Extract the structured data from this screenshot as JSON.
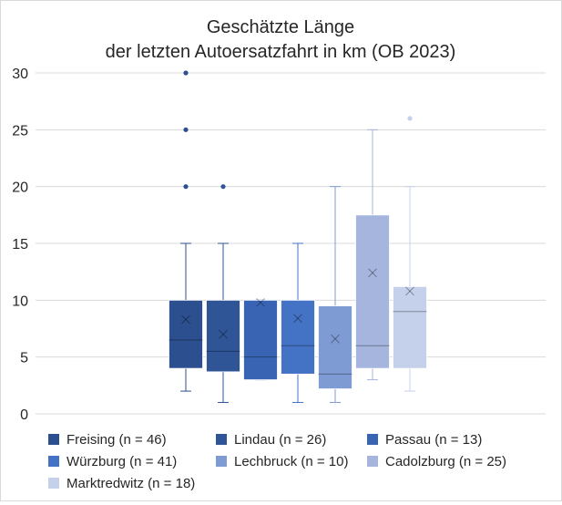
{
  "chart_data": {
    "type": "box",
    "title_lines": [
      "Geschätzte Länge",
      "der letzten Autoersatzfahrt in km (OB 2023)"
    ],
    "ylim": [
      0,
      30
    ],
    "yticks": [
      0,
      5,
      10,
      15,
      20,
      25,
      30
    ],
    "grid": true,
    "legend_position": "bottom",
    "series": [
      {
        "name": "Freising (n = 46)",
        "color": "#2b4f8f",
        "min": 2,
        "q1": 4,
        "median": 6.5,
        "q3": 10,
        "max": 15,
        "mean": 8.3,
        "outliers": [
          20,
          25,
          30
        ]
      },
      {
        "name": "Lindau (n = 26)",
        "color": "#2f5597",
        "min": 1,
        "q1": 3.7,
        "median": 5.5,
        "q3": 10,
        "max": 15,
        "mean": 7.0,
        "outliers": [
          20
        ]
      },
      {
        "name": "Passau (n = 13)",
        "color": "#3864b3",
        "min": 3,
        "q1": 3,
        "median": 5,
        "q3": 10,
        "max": 10,
        "mean": 9.8,
        "outliers": []
      },
      {
        "name": "Würzburg (n = 41)",
        "color": "#4472c4",
        "min": 1,
        "q1": 3.5,
        "median": 6,
        "q3": 10,
        "max": 15,
        "mean": 8.4,
        "outliers": []
      },
      {
        "name": "Lechbruck (n = 10)",
        "color": "#7f9bd4",
        "min": 1,
        "q1": 2.2,
        "median": 3.5,
        "q3": 9.5,
        "max": 20,
        "mean": 6.6,
        "outliers": []
      },
      {
        "name": "Cadolzburg (n = 25)",
        "color": "#a5b5de",
        "min": 3,
        "q1": 4,
        "median": 6,
        "q3": 17.5,
        "max": 25,
        "mean": 12.4,
        "outliers": []
      },
      {
        "name": "Marktredwitz (n = 18)",
        "color": "#c5d0eb",
        "min": 2,
        "q1": 4,
        "median": 9,
        "q3": 11.2,
        "max": 20,
        "mean": 10.8,
        "outliers": [
          26
        ]
      }
    ]
  }
}
